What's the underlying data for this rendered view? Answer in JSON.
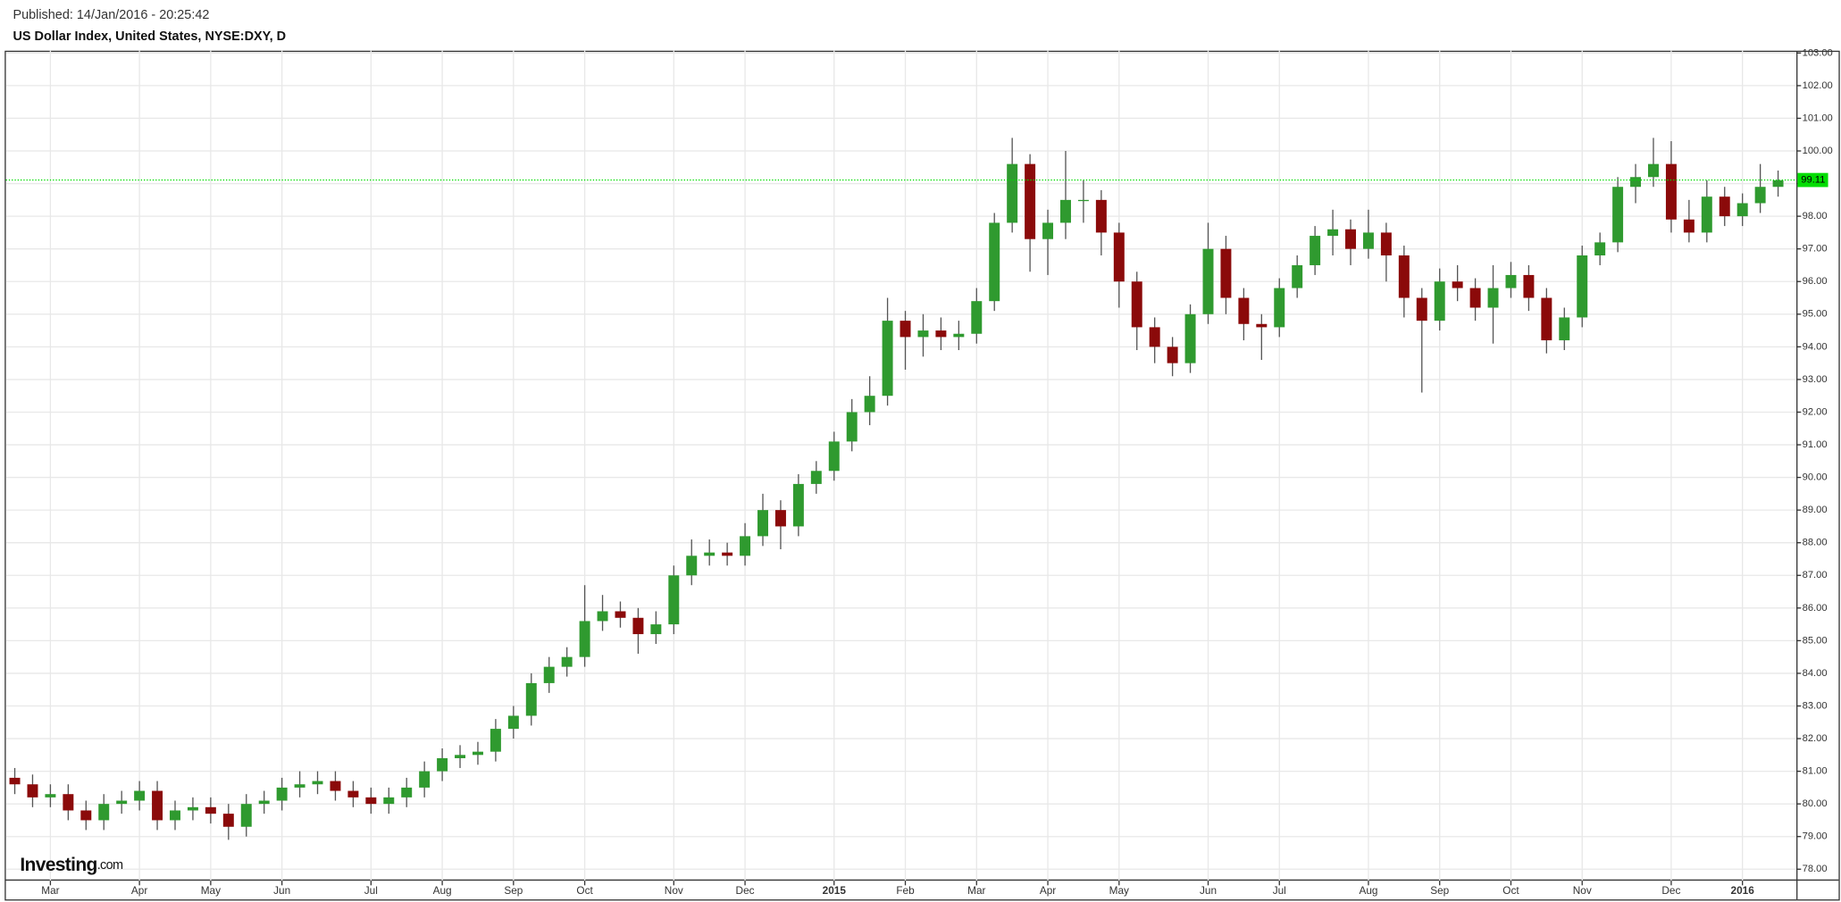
{
  "chart_data": {
    "type": "candlestick",
    "published": "Published: 14/Jan/2016 - 20:25:42",
    "title": "US Dollar Index, United States, NYSE:DXY, D",
    "watermark": "Investing",
    "watermark_suffix": ".com",
    "categories": [
      null,
      null,
      "Mar",
      null,
      null,
      null,
      null,
      "Apr",
      null,
      null,
      null,
      "May",
      null,
      null,
      null,
      "Jun",
      null,
      null,
      null,
      null,
      "Jul",
      null,
      null,
      null,
      "Aug",
      null,
      null,
      null,
      "Sep",
      null,
      null,
      null,
      "Oct",
      null,
      null,
      null,
      null,
      "Nov",
      null,
      null,
      null,
      "Dec",
      null,
      null,
      null,
      null,
      "2015",
      null,
      null,
      null,
      "Feb",
      null,
      null,
      null,
      "Mar",
      null,
      null,
      null,
      "Apr",
      null,
      null,
      null,
      "May",
      null,
      null,
      null,
      null,
      "Jun",
      null,
      null,
      null,
      "Jul",
      null,
      null,
      null,
      null,
      "Aug",
      null,
      null,
      null,
      "Sep",
      null,
      null,
      null,
      "Oct",
      null,
      null,
      null,
      "Nov",
      null,
      null,
      null,
      null,
      "Dec",
      null,
      null,
      null,
      "2016",
      null,
      null
    ],
    "open": [
      80.8,
      80.6,
      80.2,
      80.3,
      79.8,
      79.5,
      80.0,
      80.1,
      80.4,
      79.5,
      79.8,
      79.9,
      79.7,
      79.3,
      80.0,
      80.1,
      80.5,
      80.6,
      80.7,
      80.4,
      80.2,
      80.0,
      80.2,
      80.5,
      81.0,
      81.4,
      81.5,
      81.6,
      82.3,
      82.7,
      83.7,
      84.2,
      84.5,
      85.6,
      85.9,
      85.7,
      85.2,
      85.5,
      87.0,
      87.6,
      87.7,
      87.6,
      88.2,
      89.0,
      88.5,
      89.8,
      90.2,
      91.1,
      92.0,
      92.5,
      94.8,
      94.3,
      94.5,
      94.3,
      94.4,
      95.4,
      97.8,
      99.6,
      97.3,
      97.8,
      98.5,
      98.5,
      97.5,
      96.0,
      94.6,
      94.0,
      93.5,
      95.0,
      97.0,
      95.5,
      94.7,
      94.6,
      95.8,
      96.5,
      97.4,
      97.6,
      97.0,
      97.5,
      96.8,
      95.5,
      94.8,
      96.0,
      95.8,
      95.2,
      95.8,
      96.2,
      95.5,
      94.2,
      94.9,
      96.8,
      97.2,
      98.9,
      99.2,
      99.6,
      97.9,
      97.5,
      98.6,
      98.0,
      98.4,
      98.9
    ],
    "high": [
      81.1,
      80.9,
      80.6,
      80.6,
      80.1,
      80.3,
      80.4,
      80.7,
      80.7,
      80.1,
      80.2,
      80.2,
      80.0,
      80.3,
      80.4,
      80.8,
      81.0,
      81.0,
      81.0,
      80.7,
      80.5,
      80.5,
      80.8,
      81.3,
      81.7,
      81.8,
      81.9,
      82.6,
      83.0,
      84.0,
      84.5,
      84.8,
      86.7,
      86.4,
      86.2,
      86.0,
      85.9,
      87.3,
      88.1,
      88.1,
      88.0,
      88.6,
      89.5,
      89.3,
      90.1,
      90.5,
      91.4,
      92.4,
      93.1,
      95.5,
      95.1,
      95.0,
      94.9,
      94.8,
      95.8,
      98.1,
      100.4,
      99.9,
      98.2,
      100.0,
      99.1,
      98.8,
      97.8,
      96.3,
      94.9,
      94.3,
      95.3,
      97.8,
      97.4,
      95.8,
      95.0,
      96.1,
      96.8,
      97.7,
      98.2,
      97.9,
      98.2,
      97.8,
      97.1,
      95.8,
      96.4,
      96.5,
      96.1,
      96.5,
      96.6,
      96.5,
      95.8,
      95.2,
      97.1,
      97.5,
      99.2,
      99.6,
      100.4,
      100.3,
      98.5,
      99.1,
      98.9,
      98.7,
      99.6,
      99.4
    ],
    "low": [
      80.3,
      79.9,
      79.9,
      79.5,
      79.2,
      79.2,
      79.7,
      79.8,
      79.2,
      79.2,
      79.5,
      79.4,
      78.9,
      79.0,
      79.7,
      79.8,
      80.2,
      80.3,
      80.1,
      79.9,
      79.7,
      79.7,
      79.9,
      80.2,
      80.7,
      81.1,
      81.2,
      81.3,
      82.0,
      82.4,
      83.4,
      83.9,
      84.2,
      85.3,
      85.4,
      84.6,
      84.9,
      85.2,
      86.7,
      87.3,
      87.3,
      87.3,
      87.9,
      87.8,
      88.2,
      89.5,
      89.9,
      90.8,
      91.6,
      92.2,
      93.3,
      93.7,
      93.9,
      93.9,
      94.1,
      95.1,
      97.5,
      96.3,
      96.2,
      97.3,
      97.8,
      96.8,
      95.2,
      93.9,
      93.5,
      93.1,
      93.2,
      94.7,
      95.0,
      94.2,
      93.6,
      94.3,
      95.5,
      96.2,
      96.8,
      96.5,
      96.7,
      96.0,
      94.9,
      92.6,
      94.5,
      95.4,
      94.8,
      94.1,
      95.5,
      95.1,
      93.8,
      93.9,
      94.6,
      96.5,
      96.9,
      98.4,
      98.9,
      97.5,
      97.2,
      97.2,
      97.7,
      97.7,
      98.1,
      98.6
    ],
    "close": [
      80.6,
      80.2,
      80.3,
      79.8,
      79.5,
      80.0,
      80.1,
      80.4,
      79.5,
      79.8,
      79.9,
      79.7,
      79.3,
      80.0,
      80.1,
      80.5,
      80.6,
      80.7,
      80.4,
      80.2,
      80.0,
      80.2,
      80.5,
      81.0,
      81.4,
      81.5,
      81.6,
      82.3,
      82.7,
      83.7,
      84.2,
      84.5,
      85.6,
      85.9,
      85.7,
      85.2,
      85.5,
      87.0,
      87.6,
      87.7,
      87.6,
      88.2,
      89.0,
      88.5,
      89.8,
      90.2,
      91.1,
      92.0,
      92.5,
      94.8,
      94.3,
      94.5,
      94.3,
      94.4,
      95.4,
      97.8,
      99.6,
      97.3,
      97.8,
      98.5,
      98.5,
      97.5,
      96.0,
      94.6,
      94.0,
      93.5,
      95.0,
      97.0,
      95.5,
      94.7,
      94.6,
      95.8,
      96.5,
      97.4,
      97.6,
      97.0,
      97.5,
      96.8,
      95.5,
      94.8,
      96.0,
      95.8,
      95.2,
      95.8,
      96.2,
      95.5,
      94.2,
      94.9,
      96.8,
      97.2,
      98.9,
      99.2,
      99.6,
      97.9,
      97.5,
      98.6,
      98.0,
      98.4,
      98.9,
      99.1
    ],
    "up_color": "#2f9a2f",
    "down_color": "#8b0a0a",
    "wick_color": "#555555",
    "last_price": 99.11,
    "last_price_color": "#00dd00",
    "ylim": [
      77.65,
      103.07
    ],
    "yticks": [
      {
        "value": 78,
        "label": "78.00"
      },
      {
        "value": 79,
        "label": "79.00"
      },
      {
        "value": 80,
        "label": "80.00"
      },
      {
        "value": 81,
        "label": "81.00"
      },
      {
        "value": 82,
        "label": "82.00"
      },
      {
        "value": 83,
        "label": "83.00"
      },
      {
        "value": 84,
        "label": "84.00"
      },
      {
        "value": 85,
        "label": "85.00"
      },
      {
        "value": 86,
        "label": "86.00"
      },
      {
        "value": 87,
        "label": "87.00"
      },
      {
        "value": 88,
        "label": "88.00"
      },
      {
        "value": 89,
        "label": "89.00"
      },
      {
        "value": 90,
        "label": "90.00"
      },
      {
        "value": 91,
        "label": "91.00"
      },
      {
        "value": 92,
        "label": "92.00"
      },
      {
        "value": 93,
        "label": "93.00"
      },
      {
        "value": 94,
        "label": "94.00"
      },
      {
        "value": 95,
        "label": "95.00"
      },
      {
        "value": 96,
        "label": "96.00"
      },
      {
        "value": 97,
        "label": "97.00"
      },
      {
        "value": 98,
        "label": "98.00"
      },
      {
        "value": 99,
        "label": "99.00"
      },
      {
        "value": 100,
        "label": "100.00"
      },
      {
        "value": 101,
        "label": "101.00"
      },
      {
        "value": 102,
        "label": "102.00"
      },
      {
        "value": 103,
        "label": "103.00"
      }
    ],
    "grid": true
  }
}
